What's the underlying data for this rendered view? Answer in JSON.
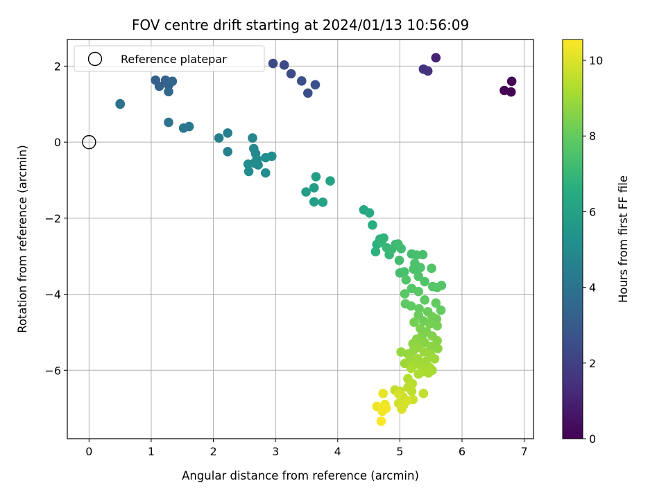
{
  "chart_data": {
    "type": "scatter",
    "title": "FOV centre drift starting at 2024/01/13 10:56:09",
    "xlabel": "Angular distance from reference (arcmin)",
    "ylabel": "Rotation from reference (arcmin)",
    "xlim": [
      -0.35,
      7.15
    ],
    "ylim": [
      -7.8,
      2.7
    ],
    "xticks": [
      0,
      1,
      2,
      3,
      4,
      5,
      6,
      7
    ],
    "yticks": [
      2,
      0,
      -2,
      -4,
      -6
    ],
    "grid": true,
    "legend": {
      "placement": "upper-left",
      "entries": [
        {
          "label": "Reference platepar",
          "marker": "open-circle"
        }
      ]
    },
    "reference_point": {
      "x": 0,
      "y": 0
    },
    "colorbar": {
      "label": "Hours from first FF file",
      "min": 0,
      "max": 10.55,
      "ticks": [
        0,
        2,
        4,
        6,
        8,
        10
      ],
      "colormap": "viridis"
    },
    "tick_minus_sign": "−",
    "series": [
      {
        "points": [
          [
            6.68,
            1.36,
            0.05
          ],
          [
            6.79,
            1.32,
            0.05
          ],
          [
            6.8,
            1.6,
            0.05
          ],
          [
            5.58,
            2.22,
            1.0
          ],
          [
            5.38,
            1.92,
            1.5
          ],
          [
            5.45,
            1.87,
            1.5
          ],
          [
            2.96,
            2.07,
            2.3
          ],
          [
            3.14,
            2.03,
            2.3
          ],
          [
            3.25,
            1.8,
            2.4
          ],
          [
            3.42,
            1.61,
            2.5
          ],
          [
            3.52,
            1.29,
            2.5
          ],
          [
            3.64,
            1.51,
            2.6
          ],
          [
            1.07,
            1.63,
            3.2
          ],
          [
            1.13,
            1.47,
            3.2
          ],
          [
            1.23,
            1.63,
            3.3
          ],
          [
            1.28,
            1.5,
            3.3
          ],
          [
            1.34,
            1.6,
            3.4
          ],
          [
            1.28,
            1.33,
            3.6
          ],
          [
            0.5,
            1.01,
            3.9
          ],
          [
            1.28,
            0.52,
            4.0
          ],
          [
            1.52,
            0.37,
            4.1
          ],
          [
            1.61,
            0.41,
            4.1
          ],
          [
            2.09,
            0.11,
            4.5
          ],
          [
            2.23,
            0.24,
            4.6
          ],
          [
            2.23,
            -0.25,
            4.6
          ],
          [
            2.63,
            0.11,
            4.8
          ],
          [
            2.65,
            -0.17,
            4.9
          ],
          [
            2.68,
            -0.3,
            4.9
          ],
          [
            2.7,
            -0.45,
            5.0
          ],
          [
            2.72,
            -0.6,
            5.0
          ],
          [
            2.66,
            -0.55,
            5.0
          ],
          [
            2.56,
            -0.58,
            5.1
          ],
          [
            2.57,
            -0.77,
            5.1
          ],
          [
            2.84,
            -0.81,
            5.1
          ],
          [
            2.84,
            -0.41,
            5.2
          ],
          [
            2.94,
            -0.37,
            5.2
          ],
          [
            3.49,
            -1.31,
            5.8
          ],
          [
            3.62,
            -1.2,
            5.8
          ],
          [
            3.65,
            -0.91,
            5.9
          ],
          [
            3.62,
            -1.57,
            5.9
          ],
          [
            3.76,
            -1.58,
            6.0
          ],
          [
            3.88,
            -1.02,
            6.0
          ],
          [
            4.42,
            -1.78,
            6.3
          ],
          [
            4.51,
            -1.86,
            6.4
          ],
          [
            4.56,
            -2.18,
            6.5
          ],
          [
            4.61,
            -2.88,
            6.7
          ],
          [
            4.63,
            -2.69,
            6.7
          ],
          [
            4.68,
            -2.55,
            6.8
          ],
          [
            4.74,
            -2.52,
            6.8
          ],
          [
            4.7,
            -2.64,
            6.9
          ],
          [
            4.79,
            -2.78,
            7.0
          ],
          [
            4.83,
            -2.96,
            7.0
          ],
          [
            4.87,
            -2.82,
            7.1
          ],
          [
            4.93,
            -2.69,
            7.1
          ],
          [
            4.97,
            -2.68,
            7.2
          ],
          [
            5.02,
            -2.8,
            7.2
          ],
          [
            4.99,
            -3.11,
            7.3
          ],
          [
            5.0,
            -3.44,
            7.3
          ],
          [
            5.07,
            -3.41,
            7.4
          ],
          [
            5.19,
            -2.94,
            7.3
          ],
          [
            5.27,
            -2.97,
            7.4
          ],
          [
            5.37,
            -2.96,
            7.4
          ],
          [
            5.24,
            -3.19,
            7.5
          ],
          [
            5.33,
            -3.3,
            7.5
          ],
          [
            5.22,
            -3.34,
            7.5
          ],
          [
            5.3,
            -3.53,
            7.6
          ],
          [
            5.4,
            -3.67,
            7.6
          ],
          [
            5.1,
            -3.62,
            7.6
          ],
          [
            5.19,
            -3.85,
            7.7
          ],
          [
            5.51,
            -3.32,
            7.6
          ],
          [
            5.53,
            -3.8,
            7.7
          ],
          [
            5.6,
            -3.82,
            7.7
          ],
          [
            5.67,
            -3.77,
            7.7
          ],
          [
            5.08,
            -3.99,
            7.8
          ],
          [
            5.3,
            -3.93,
            7.8
          ],
          [
            5.4,
            -4.15,
            7.9
          ],
          [
            5.09,
            -4.25,
            7.9
          ],
          [
            5.18,
            -4.31,
            7.9
          ],
          [
            5.58,
            -4.23,
            8.0
          ],
          [
            5.66,
            -4.42,
            8.0
          ],
          [
            5.31,
            -4.38,
            8.0
          ],
          [
            5.45,
            -4.46,
            8.1
          ],
          [
            5.3,
            -4.55,
            8.1
          ],
          [
            5.52,
            -4.59,
            8.2
          ],
          [
            5.59,
            -4.65,
            8.2
          ],
          [
            5.38,
            -4.7,
            8.2
          ],
          [
            5.23,
            -4.74,
            8.3
          ],
          [
            5.48,
            -4.78,
            8.3
          ],
          [
            5.6,
            -4.83,
            8.3
          ],
          [
            5.33,
            -4.9,
            8.4
          ],
          [
            5.43,
            -4.99,
            8.4
          ],
          [
            5.52,
            -5.1,
            8.5
          ],
          [
            5.36,
            -5.08,
            8.5
          ],
          [
            5.27,
            -5.18,
            8.6
          ],
          [
            5.6,
            -5.22,
            8.6
          ],
          [
            5.4,
            -5.27,
            8.6
          ],
          [
            5.21,
            -5.3,
            8.7
          ],
          [
            5.5,
            -5.37,
            8.7
          ],
          [
            5.61,
            -5.43,
            8.7
          ],
          [
            5.3,
            -5.4,
            8.8
          ],
          [
            5.02,
            -5.52,
            8.8
          ],
          [
            5.13,
            -5.57,
            8.8
          ],
          [
            5.22,
            -5.48,
            8.8
          ],
          [
            5.39,
            -5.52,
            8.9
          ],
          [
            5.49,
            -5.58,
            8.9
          ],
          [
            5.17,
            -5.68,
            8.9
          ],
          [
            5.29,
            -5.7,
            9.0
          ],
          [
            5.56,
            -5.7,
            9.0
          ],
          [
            5.42,
            -5.77,
            9.0
          ],
          [
            5.08,
            -5.82,
            9.0
          ],
          [
            5.22,
            -5.86,
            9.1
          ],
          [
            5.34,
            -5.88,
            9.1
          ],
          [
            5.48,
            -5.93,
            9.1
          ],
          [
            5.52,
            -6.0,
            9.1
          ],
          [
            5.36,
            -6.04,
            9.2
          ],
          [
            5.46,
            -6.07,
            9.2
          ],
          [
            5.18,
            -5.95,
            9.2
          ],
          [
            5.3,
            -6.1,
            9.2
          ],
          [
            5.13,
            -6.22,
            9.3
          ],
          [
            5.2,
            -6.35,
            9.4
          ],
          [
            5.19,
            -6.55,
            9.5
          ],
          [
            5.13,
            -6.45,
            9.5
          ],
          [
            4.92,
            -6.52,
            9.6
          ],
          [
            5.0,
            -6.55,
            9.6
          ],
          [
            5.38,
            -6.61,
            9.6
          ],
          [
            5.21,
            -6.77,
            9.7
          ],
          [
            5.05,
            -6.7,
            9.7
          ],
          [
            4.98,
            -6.87,
            9.8
          ],
          [
            5.06,
            -6.92,
            9.8
          ],
          [
            5.03,
            -7.02,
            9.9
          ],
          [
            5.12,
            -6.8,
            9.9
          ],
          [
            4.98,
            -6.62,
            9.9
          ],
          [
            4.73,
            -6.61,
            10.2
          ],
          [
            4.63,
            -6.95,
            10.3
          ],
          [
            4.76,
            -6.9,
            10.3
          ],
          [
            4.72,
            -7.08,
            10.4
          ],
          [
            4.7,
            -7.34,
            10.5
          ],
          [
            4.78,
            -7.0,
            10.4
          ],
          [
            0.5,
            1.0,
            3.9
          ]
        ]
      }
    ]
  }
}
